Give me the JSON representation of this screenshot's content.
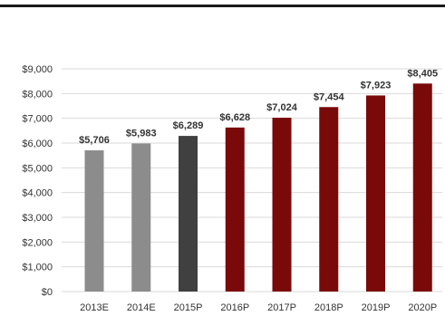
{
  "chart_data": {
    "type": "bar",
    "title": "",
    "xlabel": "",
    "ylabel": "",
    "categories": [
      "2013E",
      "2014E",
      "2015P",
      "2016P",
      "2017P",
      "2018P",
      "2019P",
      "2020P"
    ],
    "values": [
      5706,
      5983,
      6289,
      6628,
      7024,
      7454,
      7923,
      8405
    ],
    "data_labels": [
      "$5,706",
      "$5,983",
      "$6,289",
      "$6,628",
      "$7,024",
      "$7,454",
      "$7,923",
      "$8,405"
    ],
    "bar_colors": [
      "#8c8c8c",
      "#8c8c8c",
      "#404040",
      "#7a0a0a",
      "#7a0a0a",
      "#7a0a0a",
      "#7a0a0a",
      "#7a0a0a"
    ],
    "ylim": [
      0,
      9000
    ],
    "y_ticks": [
      0,
      1000,
      2000,
      3000,
      4000,
      5000,
      6000,
      7000,
      8000,
      9000
    ],
    "y_tick_labels": [
      "$0",
      "$1,000",
      "$2,000",
      "$3,000",
      "$4,000",
      "$5,000",
      "$6,000",
      "$7,000",
      "$8,000",
      "$9,000"
    ],
    "grid": true,
    "grid_color": "#d9d9d9",
    "legend": "none"
  }
}
